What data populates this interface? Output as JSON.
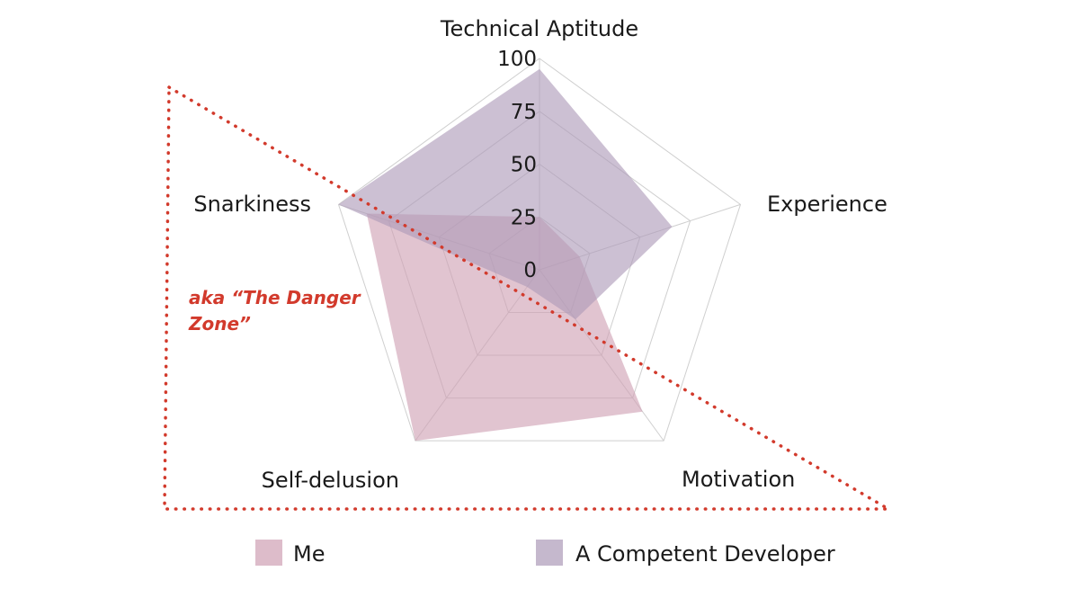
{
  "chart_data": {
    "type": "radar",
    "axes": [
      "Technical Aptitude",
      "Experience",
      "Motivation",
      "Self-delusion",
      "Snarkiness"
    ],
    "range": [
      0,
      100
    ],
    "ticks": [
      "0",
      "25",
      "50",
      "75",
      "100"
    ],
    "tick_values": [
      0,
      25,
      50,
      75,
      100
    ],
    "series": [
      {
        "name": "Me",
        "values": [
          25,
          20,
          83,
          100,
          86
        ],
        "color": "#cf9fb3"
      },
      {
        "name": "A Competent Developer",
        "values": [
          95,
          66,
          29,
          10,
          100
        ],
        "color": "#ad9ab8"
      }
    ],
    "legend_position": "bottom",
    "annotation": {
      "line1": "aka “The Danger",
      "line2": "Zone”",
      "color": "#d23a2c"
    },
    "grid": true
  }
}
